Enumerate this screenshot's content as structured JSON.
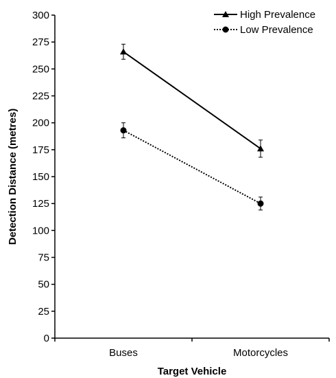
{
  "chart_data": {
    "type": "line",
    "xlabel": "Target Vehicle",
    "ylabel": "Detection Distance  (metres)",
    "categories": [
      "Buses",
      "Motorcycles"
    ],
    "ylim": [
      0,
      300
    ],
    "yticks": [
      0,
      25,
      50,
      75,
      100,
      125,
      150,
      175,
      200,
      225,
      250,
      275,
      300
    ],
    "grid": false,
    "legend_position": "top-right",
    "series": [
      {
        "name": "High Prevalence",
        "marker": "triangle",
        "line_style": "solid",
        "color": "#000000",
        "values": [
          266,
          176
        ],
        "error": [
          7,
          8
        ]
      },
      {
        "name": "Low Prevalence",
        "marker": "circle",
        "line_style": "dotted",
        "color": "#000000",
        "values": [
          193,
          125
        ],
        "error": [
          7,
          6
        ]
      }
    ]
  }
}
